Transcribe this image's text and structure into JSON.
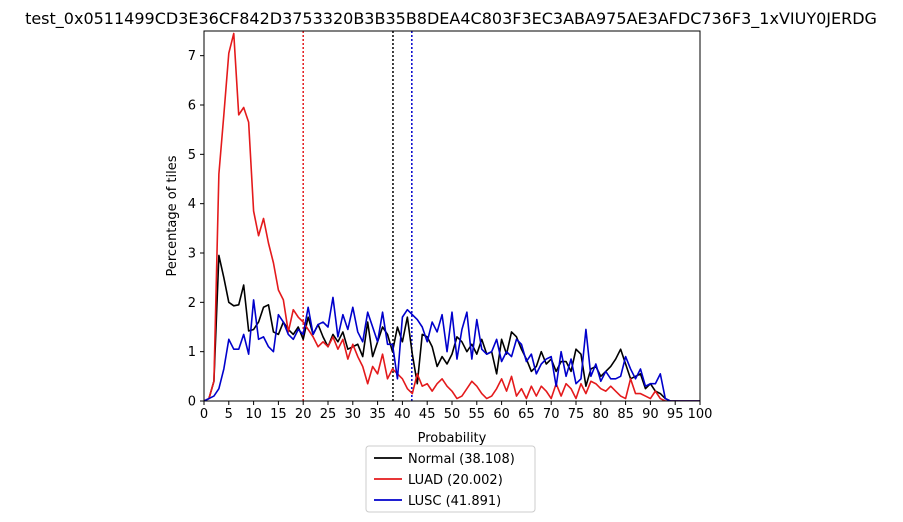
{
  "chart_data": {
    "type": "line",
    "title": "test_0x0511499CD3E36CF842D3753320B3B35B8DEA4C803F3EC3ABA975AE3AFDC736F3_1xVIUY0JERDG",
    "xlabel": "Probability",
    "ylabel": "Percentage of tiles",
    "xlim": [
      0,
      100
    ],
    "ylim": [
      0,
      7.5
    ],
    "xticks": [
      0,
      5,
      10,
      15,
      20,
      25,
      30,
      35,
      40,
      45,
      50,
      55,
      60,
      65,
      70,
      75,
      80,
      85,
      90,
      95,
      100
    ],
    "yticks": [
      0,
      1,
      2,
      3,
      4,
      5,
      6,
      7
    ],
    "legend_position": "below",
    "x": [
      0,
      1,
      2,
      3,
      4,
      5,
      6,
      7,
      8,
      9,
      10,
      11,
      12,
      13,
      14,
      15,
      16,
      17,
      18,
      19,
      20,
      21,
      22,
      23,
      24,
      25,
      26,
      27,
      28,
      29,
      30,
      31,
      32,
      33,
      34,
      35,
      36,
      37,
      38,
      39,
      40,
      41,
      42,
      43,
      44,
      45,
      46,
      47,
      48,
      49,
      50,
      51,
      52,
      53,
      54,
      55,
      56,
      57,
      58,
      59,
      60,
      61,
      62,
      63,
      64,
      65,
      66,
      67,
      68,
      69,
      70,
      71,
      72,
      73,
      74,
      75,
      76,
      77,
      78,
      79,
      80,
      81,
      82,
      83,
      84,
      85,
      86,
      87,
      88,
      89,
      90,
      91,
      92,
      93,
      94,
      95,
      96,
      97,
      98,
      99,
      100
    ],
    "series": [
      {
        "name": "Normal (38.108)",
        "color": "#000000",
        "values": [
          0,
          0.05,
          0.4,
          2.95,
          2.5,
          2.0,
          1.93,
          1.95,
          2.35,
          1.42,
          1.45,
          1.6,
          1.9,
          1.95,
          1.4,
          1.35,
          1.6,
          1.45,
          1.35,
          1.5,
          1.25,
          1.7,
          1.35,
          1.55,
          1.3,
          1.1,
          1.35,
          1.2,
          1.4,
          1.05,
          1.1,
          1.15,
          0.9,
          1.6,
          0.9,
          1.2,
          1.5,
          1.35,
          1.0,
          1.5,
          1.2,
          1.7,
          0.95,
          0.35,
          1.35,
          1.3,
          1.1,
          0.7,
          0.9,
          0.75,
          0.95,
          1.3,
          1.2,
          1.0,
          1.15,
          0.95,
          1.25,
          0.95,
          1.0,
          0.55,
          1.25,
          0.95,
          1.4,
          1.3,
          1.05,
          0.85,
          0.6,
          0.7,
          1.0,
          0.75,
          0.85,
          0.6,
          0.8,
          0.8,
          0.6,
          1.05,
          0.95,
          0.3,
          0.65,
          0.7,
          0.5,
          0.6,
          0.7,
          0.85,
          1.05,
          0.75,
          0.45,
          0.5,
          0.55,
          0.25,
          0.35,
          0.2,
          0.15,
          0.05,
          0,
          0,
          0,
          0,
          0,
          0,
          0
        ]
      },
      {
        "name": "LUAD (20.002)",
        "color": "#e41a1c",
        "values": [
          0,
          0.05,
          0.4,
          4.6,
          5.8,
          7.05,
          7.45,
          5.8,
          5.95,
          5.65,
          3.85,
          3.35,
          3.7,
          3.2,
          2.8,
          2.25,
          2.05,
          1.4,
          1.85,
          1.7,
          1.6,
          1.45,
          1.3,
          1.1,
          1.2,
          1.1,
          1.3,
          1.05,
          1.25,
          0.85,
          1.15,
          0.9,
          0.7,
          0.35,
          0.7,
          0.55,
          0.95,
          0.45,
          0.65,
          0.55,
          0.45,
          0.25,
          0.15,
          0.55,
          0.3,
          0.35,
          0.2,
          0.35,
          0.45,
          0.3,
          0.2,
          0.05,
          0.1,
          0.25,
          0.4,
          0.3,
          0.15,
          0.05,
          0.1,
          0.25,
          0.45,
          0.2,
          0.5,
          0.1,
          0.25,
          0.05,
          0.3,
          0.1,
          0.3,
          0.2,
          0.05,
          0.35,
          0.1,
          0.35,
          0.25,
          0.05,
          0.35,
          0.15,
          0.4,
          0.35,
          0.25,
          0.2,
          0.3,
          0.2,
          0.1,
          0.05,
          0.45,
          0.15,
          0.15,
          0.1,
          0.05,
          0.2,
          0.05,
          0,
          0,
          0,
          0,
          0,
          0,
          0,
          0
        ]
      },
      {
        "name": "LUSC (41.891)",
        "color": "#0000cc",
        "values": [
          0,
          0.05,
          0.1,
          0.25,
          0.65,
          1.25,
          1.05,
          1.05,
          1.35,
          0.95,
          2.05,
          1.25,
          1.3,
          1.1,
          1.0,
          1.75,
          1.6,
          1.35,
          1.25,
          1.45,
          1.35,
          1.9,
          1.35,
          1.55,
          1.6,
          1.5,
          2.1,
          1.3,
          1.75,
          1.45,
          1.9,
          1.4,
          1.2,
          1.8,
          1.5,
          1.2,
          1.8,
          1.15,
          1.15,
          0.45,
          1.7,
          1.85,
          1.75,
          1.65,
          1.5,
          1.2,
          1.6,
          1.4,
          1.75,
          1.0,
          1.8,
          0.85,
          1.45,
          1.8,
          0.85,
          1.65,
          1.05,
          0.95,
          1.0,
          1.25,
          0.8,
          1.0,
          0.9,
          1.25,
          1.15,
          0.8,
          0.95,
          0.55,
          0.75,
          0.85,
          0.9,
          0.3,
          1.0,
          0.5,
          0.85,
          0.35,
          0.45,
          1.45,
          0.5,
          0.75,
          0.4,
          0.6,
          0.45,
          0.45,
          0.5,
          0.9,
          0.65,
          0.45,
          0.65,
          0.3,
          0.35,
          0.35,
          0.55,
          0.05,
          0,
          0,
          0,
          0,
          0,
          0,
          0
        ]
      }
    ],
    "reference_lines": [
      {
        "x": 20.0,
        "color": "#e41a1c",
        "style": "dotted"
      },
      {
        "x": 38.1,
        "color": "#000000",
        "style": "dotted"
      },
      {
        "x": 41.9,
        "color": "#0000cc",
        "style": "dotted"
      }
    ]
  }
}
